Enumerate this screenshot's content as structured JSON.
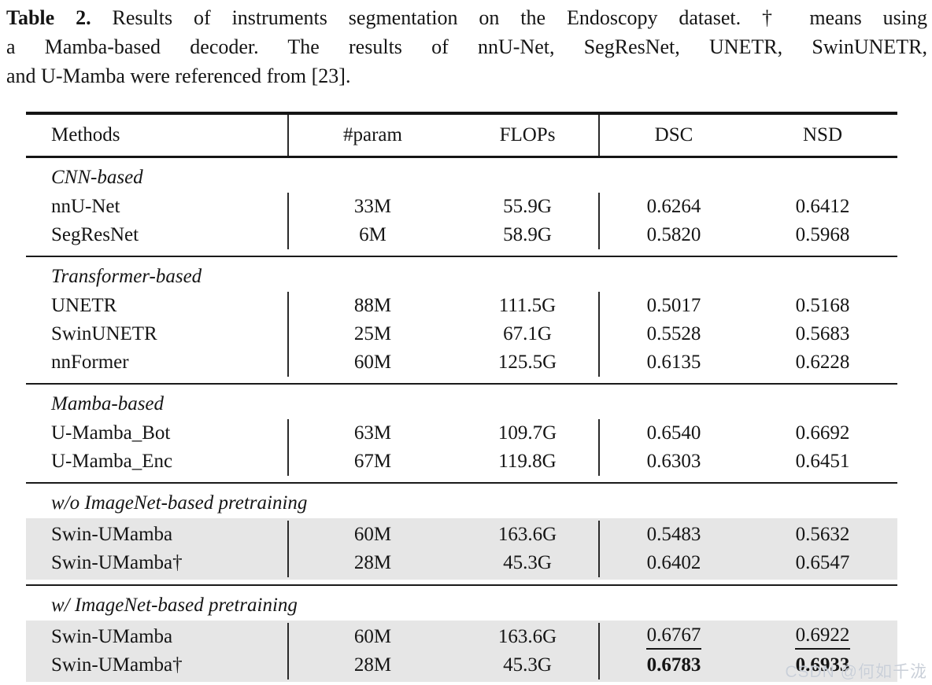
{
  "caption": {
    "label": "Table 2.",
    "line1_rest": "Results of instruments segmentation on the Endoscopy dataset. † means using",
    "line2": "a Mamba-based decoder. The results of nnU-Net, SegResNet, UNETR, SwinUNETR,",
    "line3": "and U-Mamba were referenced from [23]."
  },
  "table": {
    "headers": {
      "methods": "Methods",
      "param": "#param",
      "flops": "FLOPs",
      "dsc": "DSC",
      "nsd": "NSD"
    },
    "sections": [
      {
        "label": "CNN-based",
        "highlighted": false,
        "rows": [
          {
            "method": "nnU-Net",
            "param": "33M",
            "flops": "55.9G",
            "dsc": "0.6264",
            "nsd": "0.6412",
            "emphasis": "none"
          },
          {
            "method": "SegResNet",
            "param": "6M",
            "flops": "58.9G",
            "dsc": "0.5820",
            "nsd": "0.5968",
            "emphasis": "none"
          }
        ]
      },
      {
        "label": "Transformer-based",
        "highlighted": false,
        "rows": [
          {
            "method": "UNETR",
            "param": "88M",
            "flops": "111.5G",
            "dsc": "0.5017",
            "nsd": "0.5168",
            "emphasis": "none"
          },
          {
            "method": "SwinUNETR",
            "param": "25M",
            "flops": "67.1G",
            "dsc": "0.5528",
            "nsd": "0.5683",
            "emphasis": "none"
          },
          {
            "method": "nnFormer",
            "param": "60M",
            "flops": "125.5G",
            "dsc": "0.6135",
            "nsd": "0.6228",
            "emphasis": "none"
          }
        ]
      },
      {
        "label": "Mamba-based",
        "highlighted": false,
        "rows": [
          {
            "method": "U-Mamba_Bot",
            "param": "63M",
            "flops": "109.7G",
            "dsc": "0.6540",
            "nsd": "0.6692",
            "emphasis": "none"
          },
          {
            "method": "U-Mamba_Enc",
            "param": "67M",
            "flops": "119.8G",
            "dsc": "0.6303",
            "nsd": "0.6451",
            "emphasis": "none"
          }
        ]
      },
      {
        "label": "w/o ImageNet-based pretraining",
        "highlighted": true,
        "rows": [
          {
            "method": "Swin-UMamba",
            "param": "60M",
            "flops": "163.6G",
            "dsc": "0.5483",
            "nsd": "0.5632",
            "emphasis": "none"
          },
          {
            "method": "Swin-UMamba†",
            "param": "28M",
            "flops": "45.3G",
            "dsc": "0.6402",
            "nsd": "0.6547",
            "emphasis": "none"
          }
        ]
      },
      {
        "label": "w/ ImageNet-based pretraining",
        "highlighted": true,
        "rows": [
          {
            "method": "Swin-UMamba",
            "param": "60M",
            "flops": "163.6G",
            "dsc": "0.6767",
            "nsd": "0.6922",
            "emphasis": "underline"
          },
          {
            "method": "Swin-UMamba†",
            "param": "28M",
            "flops": "45.3G",
            "dsc": "0.6783",
            "nsd": "0.6933",
            "emphasis": "bold"
          }
        ]
      }
    ]
  },
  "watermark": "CSDN @何如千泷",
  "colors": {
    "highlight_row": "#e6e6e6",
    "rule": "#151515",
    "watermark": "#c6ccd6",
    "background": "#ffffff"
  }
}
